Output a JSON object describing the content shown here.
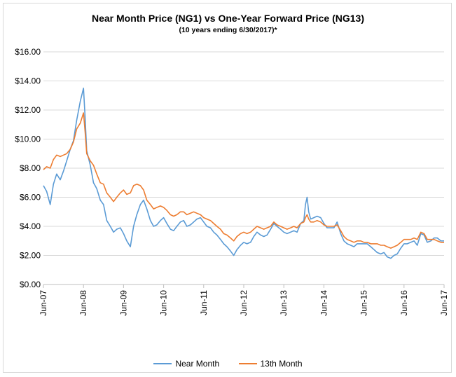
{
  "chart_data": {
    "type": "line",
    "title": "Near Month Price (NG1) vs One-Year Forward Price (NG13)",
    "subtitle": "(10 years ending 6/30/2017)*",
    "xlabel": "",
    "ylabel": "",
    "xlim": [
      2007.5,
      2017.5
    ],
    "ylim": [
      0,
      16
    ],
    "y_ticks": [
      "$0.00",
      "$2.00",
      "$4.00",
      "$6.00",
      "$8.00",
      "$10.00",
      "$12.00",
      "$14.00",
      "$16.00"
    ],
    "x_ticks": [
      "Jun-07",
      "Jun-08",
      "Jun-09",
      "Jun-10",
      "Jun-11",
      "Jun-12",
      "Jun-13",
      "Jun-14",
      "Jun-15",
      "Jun-16",
      "Jun-17"
    ],
    "grid": "horizontal",
    "legend": "bottom",
    "series": [
      {
        "name": "Near Month",
        "color": "#5b9bd5",
        "points": [
          [
            2007.5,
            6.8
          ],
          [
            2007.58,
            6.4
          ],
          [
            2007.67,
            5.5
          ],
          [
            2007.75,
            6.9
          ],
          [
            2007.83,
            7.6
          ],
          [
            2007.92,
            7.2
          ],
          [
            2008.0,
            7.8
          ],
          [
            2008.08,
            8.5
          ],
          [
            2008.17,
            9.3
          ],
          [
            2008.25,
            9.9
          ],
          [
            2008.33,
            11.3
          ],
          [
            2008.42,
            12.6
          ],
          [
            2008.5,
            13.5
          ],
          [
            2008.54,
            11.5
          ],
          [
            2008.58,
            9.2
          ],
          [
            2008.67,
            8.2
          ],
          [
            2008.75,
            7.0
          ],
          [
            2008.83,
            6.6
          ],
          [
            2008.92,
            5.8
          ],
          [
            2009.0,
            5.5
          ],
          [
            2009.08,
            4.4
          ],
          [
            2009.17,
            4.0
          ],
          [
            2009.25,
            3.6
          ],
          [
            2009.33,
            3.8
          ],
          [
            2009.42,
            3.9
          ],
          [
            2009.5,
            3.5
          ],
          [
            2009.58,
            3.0
          ],
          [
            2009.67,
            2.6
          ],
          [
            2009.75,
            4.0
          ],
          [
            2009.83,
            4.8
          ],
          [
            2009.92,
            5.5
          ],
          [
            2010.0,
            5.8
          ],
          [
            2010.08,
            5.2
          ],
          [
            2010.17,
            4.4
          ],
          [
            2010.25,
            4.0
          ],
          [
            2010.33,
            4.1
          ],
          [
            2010.42,
            4.4
          ],
          [
            2010.5,
            4.6
          ],
          [
            2010.58,
            4.2
          ],
          [
            2010.67,
            3.8
          ],
          [
            2010.75,
            3.7
          ],
          [
            2010.83,
            4.0
          ],
          [
            2010.92,
            4.3
          ],
          [
            2011.0,
            4.4
          ],
          [
            2011.08,
            4.0
          ],
          [
            2011.17,
            4.1
          ],
          [
            2011.25,
            4.3
          ],
          [
            2011.33,
            4.5
          ],
          [
            2011.42,
            4.6
          ],
          [
            2011.5,
            4.3
          ],
          [
            2011.58,
            4.0
          ],
          [
            2011.67,
            3.9
          ],
          [
            2011.75,
            3.6
          ],
          [
            2011.83,
            3.4
          ],
          [
            2011.92,
            3.1
          ],
          [
            2012.0,
            2.8
          ],
          [
            2012.08,
            2.6
          ],
          [
            2012.17,
            2.3
          ],
          [
            2012.25,
            2.0
          ],
          [
            2012.33,
            2.4
          ],
          [
            2012.42,
            2.7
          ],
          [
            2012.5,
            2.9
          ],
          [
            2012.58,
            2.8
          ],
          [
            2012.67,
            2.9
          ],
          [
            2012.75,
            3.3
          ],
          [
            2012.83,
            3.6
          ],
          [
            2012.92,
            3.4
          ],
          [
            2013.0,
            3.3
          ],
          [
            2013.08,
            3.4
          ],
          [
            2013.17,
            3.8
          ],
          [
            2013.25,
            4.2
          ],
          [
            2013.33,
            4.0
          ],
          [
            2013.42,
            3.8
          ],
          [
            2013.5,
            3.6
          ],
          [
            2013.58,
            3.5
          ],
          [
            2013.67,
            3.6
          ],
          [
            2013.75,
            3.7
          ],
          [
            2013.83,
            3.6
          ],
          [
            2013.92,
            4.2
          ],
          [
            2014.0,
            4.4
          ],
          [
            2014.04,
            5.5
          ],
          [
            2014.08,
            6.0
          ],
          [
            2014.12,
            5.0
          ],
          [
            2014.17,
            4.5
          ],
          [
            2014.25,
            4.6
          ],
          [
            2014.33,
            4.7
          ],
          [
            2014.42,
            4.6
          ],
          [
            2014.5,
            4.2
          ],
          [
            2014.58,
            3.9
          ],
          [
            2014.67,
            3.9
          ],
          [
            2014.75,
            3.9
          ],
          [
            2014.83,
            4.3
          ],
          [
            2014.92,
            3.5
          ],
          [
            2015.0,
            3.0
          ],
          [
            2015.08,
            2.8
          ],
          [
            2015.17,
            2.7
          ],
          [
            2015.25,
            2.6
          ],
          [
            2015.33,
            2.8
          ],
          [
            2015.42,
            2.8
          ],
          [
            2015.5,
            2.8
          ],
          [
            2015.58,
            2.8
          ],
          [
            2015.67,
            2.6
          ],
          [
            2015.75,
            2.4
          ],
          [
            2015.83,
            2.2
          ],
          [
            2015.92,
            2.1
          ],
          [
            2016.0,
            2.2
          ],
          [
            2016.08,
            1.9
          ],
          [
            2016.17,
            1.8
          ],
          [
            2016.25,
            2.0
          ],
          [
            2016.33,
            2.1
          ],
          [
            2016.42,
            2.5
          ],
          [
            2016.5,
            2.8
          ],
          [
            2016.58,
            2.8
          ],
          [
            2016.67,
            2.9
          ],
          [
            2016.75,
            3.0
          ],
          [
            2016.83,
            2.7
          ],
          [
            2016.92,
            3.5
          ],
          [
            2017.0,
            3.4
          ],
          [
            2017.08,
            2.9
          ],
          [
            2017.17,
            3.0
          ],
          [
            2017.25,
            3.2
          ],
          [
            2017.33,
            3.2
          ],
          [
            2017.42,
            3.0
          ],
          [
            2017.5,
            3.0
          ]
        ]
      },
      {
        "name": "13th Month",
        "color": "#ed7d31",
        "points": [
          [
            2007.5,
            7.9
          ],
          [
            2007.58,
            8.1
          ],
          [
            2007.67,
            8.0
          ],
          [
            2007.75,
            8.6
          ],
          [
            2007.83,
            8.9
          ],
          [
            2007.92,
            8.8
          ],
          [
            2008.0,
            8.9
          ],
          [
            2008.08,
            9.0
          ],
          [
            2008.17,
            9.3
          ],
          [
            2008.25,
            9.8
          ],
          [
            2008.33,
            10.7
          ],
          [
            2008.42,
            11.1
          ],
          [
            2008.5,
            11.8
          ],
          [
            2008.54,
            10.5
          ],
          [
            2008.58,
            9.0
          ],
          [
            2008.67,
            8.5
          ],
          [
            2008.75,
            8.2
          ],
          [
            2008.83,
            7.6
          ],
          [
            2008.92,
            7.0
          ],
          [
            2009.0,
            6.9
          ],
          [
            2009.08,
            6.3
          ],
          [
            2009.17,
            6.0
          ],
          [
            2009.25,
            5.7
          ],
          [
            2009.33,
            6.0
          ],
          [
            2009.42,
            6.3
          ],
          [
            2009.5,
            6.5
          ],
          [
            2009.58,
            6.2
          ],
          [
            2009.67,
            6.3
          ],
          [
            2009.75,
            6.8
          ],
          [
            2009.83,
            6.9
          ],
          [
            2009.92,
            6.8
          ],
          [
            2010.0,
            6.5
          ],
          [
            2010.08,
            5.8
          ],
          [
            2010.17,
            5.5
          ],
          [
            2010.25,
            5.2
          ],
          [
            2010.33,
            5.3
          ],
          [
            2010.42,
            5.4
          ],
          [
            2010.5,
            5.3
          ],
          [
            2010.58,
            5.1
          ],
          [
            2010.67,
            4.8
          ],
          [
            2010.75,
            4.7
          ],
          [
            2010.83,
            4.8
          ],
          [
            2010.92,
            5.0
          ],
          [
            2011.0,
            5.0
          ],
          [
            2011.08,
            4.8
          ],
          [
            2011.17,
            4.9
          ],
          [
            2011.25,
            5.0
          ],
          [
            2011.33,
            4.9
          ],
          [
            2011.42,
            4.8
          ],
          [
            2011.5,
            4.6
          ],
          [
            2011.58,
            4.5
          ],
          [
            2011.67,
            4.4
          ],
          [
            2011.75,
            4.2
          ],
          [
            2011.83,
            4.0
          ],
          [
            2011.92,
            3.8
          ],
          [
            2012.0,
            3.5
          ],
          [
            2012.08,
            3.4
          ],
          [
            2012.17,
            3.2
          ],
          [
            2012.25,
            3.0
          ],
          [
            2012.33,
            3.3
          ],
          [
            2012.42,
            3.5
          ],
          [
            2012.5,
            3.6
          ],
          [
            2012.58,
            3.5
          ],
          [
            2012.67,
            3.6
          ],
          [
            2012.75,
            3.8
          ],
          [
            2012.83,
            4.0
          ],
          [
            2012.92,
            3.9
          ],
          [
            2013.0,
            3.8
          ],
          [
            2013.08,
            3.9
          ],
          [
            2013.17,
            4.0
          ],
          [
            2013.25,
            4.3
          ],
          [
            2013.33,
            4.1
          ],
          [
            2013.42,
            4.0
          ],
          [
            2013.5,
            3.9
          ],
          [
            2013.58,
            3.8
          ],
          [
            2013.67,
            3.9
          ],
          [
            2013.75,
            4.0
          ],
          [
            2013.83,
            3.9
          ],
          [
            2013.92,
            4.2
          ],
          [
            2014.0,
            4.3
          ],
          [
            2014.04,
            4.6
          ],
          [
            2014.08,
            4.8
          ],
          [
            2014.12,
            4.5
          ],
          [
            2014.17,
            4.3
          ],
          [
            2014.25,
            4.3
          ],
          [
            2014.33,
            4.4
          ],
          [
            2014.42,
            4.3
          ],
          [
            2014.5,
            4.1
          ],
          [
            2014.58,
            4.0
          ],
          [
            2014.67,
            4.0
          ],
          [
            2014.75,
            4.0
          ],
          [
            2014.83,
            4.1
          ],
          [
            2014.92,
            3.7
          ],
          [
            2015.0,
            3.3
          ],
          [
            2015.08,
            3.1
          ],
          [
            2015.17,
            3.0
          ],
          [
            2015.25,
            2.9
          ],
          [
            2015.33,
            3.0
          ],
          [
            2015.42,
            3.0
          ],
          [
            2015.5,
            2.9
          ],
          [
            2015.58,
            2.9
          ],
          [
            2015.67,
            2.8
          ],
          [
            2015.75,
            2.8
          ],
          [
            2015.83,
            2.8
          ],
          [
            2015.92,
            2.7
          ],
          [
            2016.0,
            2.7
          ],
          [
            2016.08,
            2.6
          ],
          [
            2016.17,
            2.5
          ],
          [
            2016.25,
            2.6
          ],
          [
            2016.33,
            2.7
          ],
          [
            2016.42,
            2.9
          ],
          [
            2016.5,
            3.1
          ],
          [
            2016.58,
            3.1
          ],
          [
            2016.67,
            3.1
          ],
          [
            2016.75,
            3.2
          ],
          [
            2016.83,
            3.1
          ],
          [
            2016.92,
            3.6
          ],
          [
            2017.0,
            3.5
          ],
          [
            2017.08,
            3.1
          ],
          [
            2017.17,
            3.1
          ],
          [
            2017.25,
            3.1
          ],
          [
            2017.33,
            3.0
          ],
          [
            2017.42,
            2.9
          ],
          [
            2017.5,
            2.9
          ]
        ]
      }
    ]
  }
}
